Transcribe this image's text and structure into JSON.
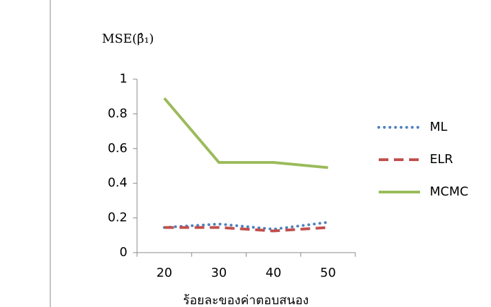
{
  "chart_data": {
    "type": "line",
    "y_label": "MSE(β̂₁)",
    "x_label": "ร้อยละของค่าตอบสนอง",
    "categories": [
      "20",
      "30",
      "40",
      "50"
    ],
    "series": [
      {
        "name": "ML",
        "color": "#4f81bd",
        "style": "dotted",
        "values": [
          0.145,
          0.165,
          0.135,
          0.175
        ]
      },
      {
        "name": "ELR",
        "color": "#c0504d",
        "style": "dashed",
        "values": [
          0.145,
          0.145,
          0.125,
          0.145
        ]
      },
      {
        "name": "MCMC",
        "color": "#9bbb59",
        "style": "solid",
        "values": [
          0.89,
          0.52,
          0.52,
          0.49
        ]
      }
    ],
    "ylim": [
      0,
      1
    ],
    "yticks": [
      0,
      0.2,
      0.4,
      0.6,
      0.8,
      1
    ],
    "grid": false,
    "legend": "right"
  }
}
